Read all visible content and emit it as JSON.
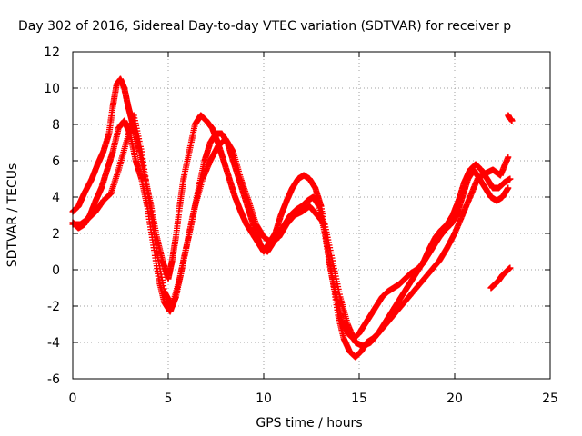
{
  "chart_data": {
    "type": "scatter",
    "title": "Day 302 of 2016, Sidereal Day-to-day VTEC variation (SDTVAR) for receiver p",
    "xlabel": "GPS time / hours",
    "ylabel": "SDTVAR / TECUs",
    "xlim": [
      0,
      25
    ],
    "ylim": [
      -6,
      12
    ],
    "x_ticks": [
      "0",
      "5",
      "10",
      "15",
      "20",
      "25"
    ],
    "y_ticks": [
      "12",
      "10",
      "8",
      "6",
      "4",
      "2",
      "0",
      "-2",
      "-4",
      "-6"
    ],
    "x_tick_values": [
      0,
      5,
      10,
      15,
      20,
      25
    ],
    "y_tick_values": [
      12,
      10,
      8,
      6,
      4,
      2,
      0,
      -2,
      -4,
      -6
    ],
    "grid": true,
    "marker": "+",
    "color": "#ff0000",
    "series": [
      {
        "x": [
          0.0,
          0.3,
          0.6,
          1.0,
          1.3,
          1.6,
          1.9,
          2.1,
          2.3,
          2.5,
          2.7,
          2.9,
          3.1,
          3.3,
          3.5,
          3.8,
          4.1,
          4.4,
          4.7,
          5.0,
          5.2,
          5.4,
          5.6,
          5.8,
          6.1,
          6.4,
          6.7,
          7.0,
          7.3,
          7.6,
          7.9,
          8.2,
          8.5,
          8.8,
          9.1,
          9.4,
          9.7,
          10.0,
          10.3,
          10.6,
          10.9,
          11.2,
          11.5,
          11.8,
          12.1,
          12.4,
          12.7,
          13.0,
          13.3,
          13.6,
          13.9,
          14.2,
          14.5,
          14.8,
          15.1,
          15.4,
          15.7,
          16.0,
          16.3,
          16.6,
          16.9,
          17.2,
          17.5,
          17.8,
          18.1,
          18.4,
          18.7,
          19.0,
          19.3,
          19.6,
          19.9,
          20.2,
          20.5,
          20.8,
          21.1,
          21.4,
          21.7,
          22.0,
          22.3,
          22.6,
          22.9
        ],
        "y": [
          3.2,
          3.5,
          4.2,
          5.0,
          5.8,
          6.5,
          7.5,
          9.0,
          10.2,
          10.5,
          10.0,
          9.0,
          8.2,
          7.5,
          6.5,
          5.0,
          3.5,
          1.8,
          0.5,
          -0.5,
          0.5,
          1.8,
          3.5,
          5.0,
          6.5,
          8.0,
          8.5,
          8.2,
          7.8,
          7.0,
          6.0,
          5.0,
          4.0,
          3.2,
          2.5,
          2.0,
          1.5,
          1.0,
          1.5,
          2.0,
          3.0,
          3.8,
          4.5,
          5.0,
          5.2,
          5.0,
          4.5,
          3.5,
          1.5,
          -0.5,
          -2.5,
          -3.8,
          -4.5,
          -4.8,
          -4.5,
          -4.0,
          -3.8,
          -3.5,
          -3.0,
          -2.5,
          -2.0,
          -1.5,
          -1.0,
          -0.5,
          0.0,
          0.5,
          1.2,
          1.8,
          2.2,
          2.5,
          3.0,
          3.8,
          4.8,
          5.5,
          5.8,
          5.5,
          5.0,
          4.5,
          4.5,
          4.8,
          5.0
        ]
      },
      {
        "x": [
          0.0,
          0.3,
          0.6,
          0.9,
          1.2,
          1.5,
          1.8,
          2.1,
          2.4,
          2.7,
          3.0,
          3.3,
          3.6,
          3.9,
          4.2,
          4.5,
          4.8,
          5.1,
          5.4,
          5.7,
          6.0,
          6.3,
          6.6,
          6.9,
          7.2,
          7.5,
          7.8,
          8.1,
          8.4,
          8.7,
          9.0,
          9.3,
          9.6,
          9.9,
          10.2,
          10.5,
          10.8,
          11.1,
          11.4,
          11.7,
          12.0,
          12.3,
          12.6,
          12.9,
          13.2,
          13.5,
          13.8,
          14.1,
          14.4,
          14.7,
          15.0,
          15.3,
          15.6,
          15.9,
          16.2,
          16.5,
          16.8,
          17.1,
          17.4,
          17.7,
          18.0,
          18.3,
          18.6,
          18.9,
          19.2,
          19.5,
          19.8,
          20.1,
          20.4,
          20.7,
          21.0,
          21.3,
          21.6,
          21.9,
          22.2,
          22.5,
          22.8
        ],
        "y": [
          2.6,
          2.3,
          2.5,
          3.0,
          3.8,
          4.5,
          5.5,
          6.5,
          7.8,
          8.2,
          7.5,
          6.0,
          5.0,
          3.5,
          1.5,
          -0.5,
          -1.8,
          -2.3,
          -1.5,
          0.0,
          1.5,
          3.0,
          4.5,
          6.0,
          7.0,
          7.5,
          7.5,
          7.0,
          6.0,
          5.0,
          4.0,
          3.0,
          2.0,
          1.2,
          1.0,
          1.5,
          2.0,
          2.5,
          3.0,
          3.3,
          3.5,
          3.8,
          4.0,
          3.5,
          2.0,
          0.0,
          -1.5,
          -2.8,
          -3.5,
          -3.8,
          -3.5,
          -3.0,
          -2.5,
          -2.0,
          -1.5,
          -1.2,
          -1.0,
          -0.8,
          -0.5,
          -0.2,
          0.0,
          0.3,
          0.8,
          1.3,
          1.8,
          2.2,
          2.5,
          3.0,
          4.0,
          5.0,
          5.5,
          5.0,
          4.5,
          4.0,
          3.8,
          4.0,
          4.5
        ]
      },
      {
        "x": [
          0.0,
          0.4,
          0.8,
          1.2,
          1.6,
          2.0,
          2.4,
          2.8,
          3.2,
          3.6,
          4.0,
          4.4,
          4.8,
          5.2,
          5.6,
          6.0,
          6.4,
          6.8,
          7.2,
          7.6,
          8.0,
          8.4,
          8.8,
          9.2,
          9.6,
          10.0,
          10.4,
          10.8,
          11.2,
          11.6,
          12.0,
          12.4,
          12.8,
          13.2,
          13.6,
          14.0,
          14.4,
          14.8,
          15.2,
          15.6,
          16.0,
          16.4,
          16.8,
          17.2,
          17.6,
          18.0,
          18.4,
          18.8,
          19.2,
          19.6,
          20.0,
          20.4,
          20.8,
          21.2,
          21.6,
          22.0,
          22.4,
          22.8
        ],
        "y": [
          2.5,
          2.5,
          2.8,
          3.2,
          3.8,
          4.2,
          5.5,
          7.0,
          8.5,
          6.5,
          3.8,
          1.0,
          -1.2,
          -2.0,
          -0.5,
          1.5,
          3.5,
          5.0,
          6.0,
          6.8,
          7.2,
          6.5,
          5.0,
          3.8,
          2.5,
          1.8,
          1.5,
          1.8,
          2.5,
          3.0,
          3.2,
          3.5,
          3.0,
          2.5,
          0.5,
          -1.5,
          -3.0,
          -4.0,
          -4.2,
          -4.0,
          -3.5,
          -3.0,
          -2.5,
          -2.0,
          -1.5,
          -1.0,
          -0.5,
          0.0,
          0.5,
          1.2,
          2.0,
          3.0,
          4.0,
          5.0,
          5.3,
          5.5,
          5.2,
          6.2
        ]
      },
      {
        "x": [
          22.8,
          22.85,
          22.9,
          22.95,
          23.0
        ],
        "y": [
          8.5,
          8.4,
          8.3,
          8.3,
          8.2
        ]
      },
      {
        "x": [
          21.9,
          22.1,
          22.3,
          22.5,
          22.7,
          22.9
        ],
        "y": [
          -1.0,
          -0.8,
          -0.6,
          -0.3,
          -0.1,
          0.1
        ]
      }
    ]
  }
}
